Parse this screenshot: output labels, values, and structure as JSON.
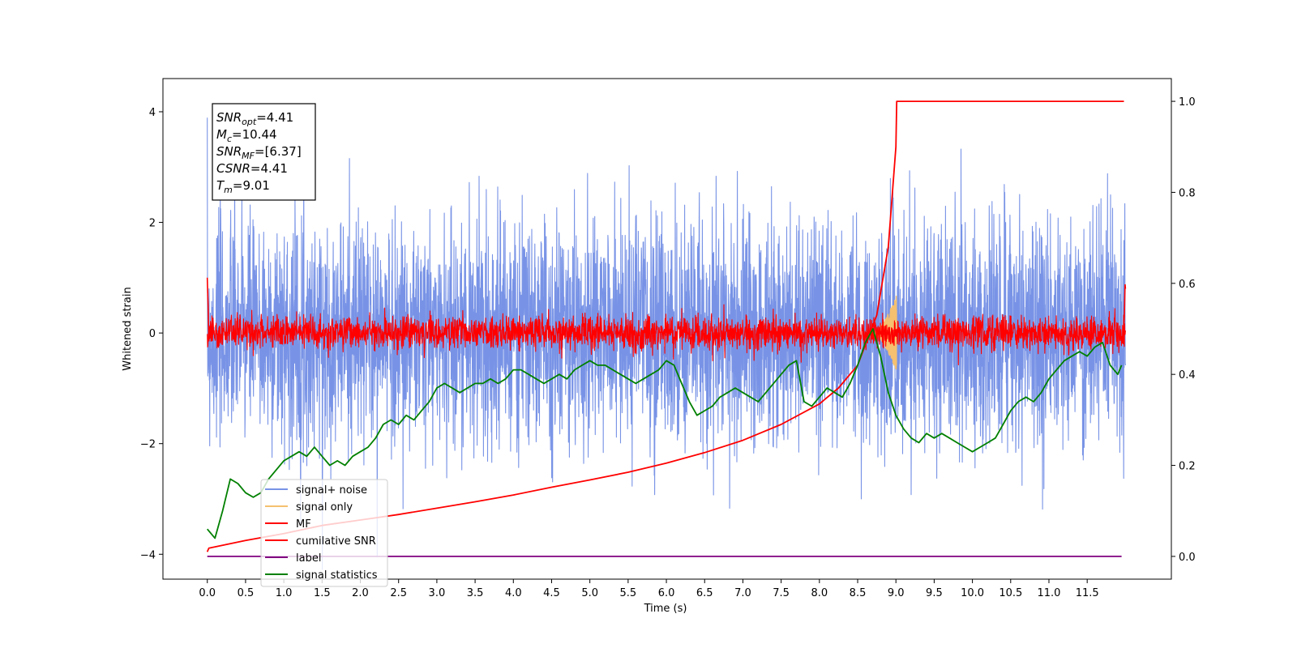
{
  "chart_data": {
    "type": "line",
    "title": "",
    "xlabel": "Time (s)",
    "ylabel": "Whitened strain",
    "ylabel_right": "",
    "xlim": [
      -0.58,
      12.6
    ],
    "ylim": [
      -4.45,
      4.6
    ],
    "ylim_right": [
      -0.05,
      1.05
    ],
    "x_ticks": [
      0.0,
      0.5,
      1.0,
      1.5,
      2.0,
      2.5,
      3.0,
      3.5,
      4.0,
      4.5,
      5.0,
      5.5,
      6.0,
      6.5,
      7.0,
      7.5,
      8.0,
      8.5,
      9.0,
      9.5,
      10.0,
      10.5,
      11.0,
      11.5
    ],
    "x_tick_labels": [
      "0.0",
      "0.5",
      "1.0",
      "1.5",
      "2.0",
      "2.5",
      "3.0",
      "3.5",
      "4.0",
      "4.5",
      "5.0",
      "5.5",
      "6.0",
      "6.5",
      "7.0",
      "7.5",
      "8.0",
      "8.5",
      "9.0",
      "9.5",
      "10.0",
      "10.5",
      "11.0",
      "11.5"
    ],
    "y_ticks": [
      -4,
      -2,
      0,
      2,
      4
    ],
    "y_tick_labels": [
      "−4",
      "−2",
      "0",
      "2",
      "4"
    ],
    "y_right_ticks": [
      0.0,
      0.2,
      0.4,
      0.6,
      0.8,
      1.0
    ],
    "y_right_tick_labels": [
      "0.0",
      "0.2",
      "0.4",
      "0.6",
      "0.8",
      "1.0"
    ],
    "grid": false,
    "legend_position": "lower-left",
    "annotation": [
      {
        "sym": "SNR",
        "sub": "opt",
        "value": "=4.41"
      },
      {
        "sym": "M",
        "sub": "c",
        "value": "=10.44"
      },
      {
        "sym": "SNR",
        "sub": "MF",
        "value": "=[6.37]"
      },
      {
        "sym": "CSNR",
        "sub": "",
        "value": "=4.41"
      },
      {
        "sym": "T",
        "sub": "m",
        "value": "=9.01"
      }
    ],
    "series": [
      {
        "name": "signal+ noise",
        "color": "#7893e6",
        "axis": "left",
        "kind": "noise",
        "amplitude": 1.0,
        "mean": 0.0,
        "x_range": [
          0.0,
          12.0
        ]
      },
      {
        "name": "signal only",
        "color": "#f5c06f",
        "axis": "left",
        "kind": "chirp",
        "x_range": [
          8.7,
          9.01
        ],
        "peak": 0.7
      },
      {
        "name": "MF",
        "color": "#ff0000",
        "axis": "left",
        "kind": "noise",
        "amplitude": 0.15,
        "mean": 0.0,
        "x_range": [
          0.0,
          12.0
        ]
      },
      {
        "name": "cumilative SNR",
        "color": "#ff0000",
        "axis": "right",
        "x": [
          0.0,
          0.02,
          0.5,
          1.0,
          1.5,
          2.0,
          2.5,
          3.0,
          3.5,
          4.0,
          4.5,
          5.0,
          5.5,
          6.0,
          6.5,
          7.0,
          7.5,
          8.0,
          8.25,
          8.5,
          8.75,
          8.9,
          9.0,
          9.01,
          9.5,
          10.0,
          10.5,
          11.0,
          11.5,
          11.98
        ],
        "y": [
          0.01,
          0.018,
          0.035,
          0.05,
          0.068,
          0.08,
          0.092,
          0.106,
          0.12,
          0.135,
          0.152,
          0.168,
          0.185,
          0.205,
          0.228,
          0.255,
          0.29,
          0.335,
          0.37,
          0.42,
          0.53,
          0.68,
          0.9,
          1.0,
          1.0,
          1.0,
          1.0,
          1.0,
          1.0,
          1.0
        ]
      },
      {
        "name": "label",
        "color": "#800080",
        "axis": "right",
        "x": [
          0.0,
          11.95
        ],
        "y": [
          0.0,
          0.0
        ]
      },
      {
        "name": "signal statistics",
        "color": "#008000",
        "axis": "right",
        "x": [
          0.0,
          0.1,
          0.2,
          0.3,
          0.4,
          0.5,
          0.6,
          0.7,
          0.8,
          0.9,
          1.0,
          1.1,
          1.2,
          1.3,
          1.4,
          1.5,
          1.6,
          1.7,
          1.8,
          1.9,
          2.0,
          2.1,
          2.2,
          2.3,
          2.4,
          2.5,
          2.6,
          2.7,
          2.8,
          2.9,
          3.0,
          3.1,
          3.2,
          3.3,
          3.4,
          3.5,
          3.6,
          3.7,
          3.8,
          3.9,
          4.0,
          4.1,
          4.2,
          4.3,
          4.4,
          4.5,
          4.6,
          4.7,
          4.8,
          4.9,
          5.0,
          5.1,
          5.2,
          5.3,
          5.4,
          5.5,
          5.6,
          5.7,
          5.8,
          5.9,
          6.0,
          6.1,
          6.2,
          6.3,
          6.4,
          6.5,
          6.6,
          6.7,
          6.8,
          6.9,
          7.0,
          7.1,
          7.2,
          7.3,
          7.4,
          7.5,
          7.6,
          7.7,
          7.8,
          7.9,
          8.0,
          8.1,
          8.2,
          8.3,
          8.4,
          8.5,
          8.6,
          8.7,
          8.8,
          8.9,
          9.0,
          9.1,
          9.2,
          9.3,
          9.4,
          9.5,
          9.6,
          9.7,
          9.8,
          9.9,
          10.0,
          10.1,
          10.2,
          10.3,
          10.4,
          10.5,
          10.6,
          10.7,
          10.8,
          10.9,
          11.0,
          11.1,
          11.2,
          11.3,
          11.4,
          11.5,
          11.6,
          11.7,
          11.8,
          11.9,
          11.95
        ],
        "y": [
          0.06,
          0.04,
          0.1,
          0.17,
          0.16,
          0.14,
          0.13,
          0.14,
          0.17,
          0.19,
          0.21,
          0.22,
          0.23,
          0.22,
          0.24,
          0.22,
          0.2,
          0.21,
          0.2,
          0.22,
          0.23,
          0.24,
          0.26,
          0.29,
          0.3,
          0.29,
          0.31,
          0.3,
          0.32,
          0.34,
          0.37,
          0.38,
          0.37,
          0.36,
          0.37,
          0.38,
          0.38,
          0.39,
          0.38,
          0.39,
          0.41,
          0.41,
          0.4,
          0.39,
          0.38,
          0.39,
          0.4,
          0.39,
          0.41,
          0.42,
          0.43,
          0.42,
          0.42,
          0.41,
          0.4,
          0.39,
          0.38,
          0.39,
          0.4,
          0.41,
          0.43,
          0.42,
          0.38,
          0.34,
          0.31,
          0.32,
          0.33,
          0.35,
          0.36,
          0.37,
          0.36,
          0.35,
          0.34,
          0.36,
          0.38,
          0.4,
          0.42,
          0.43,
          0.34,
          0.33,
          0.35,
          0.37,
          0.36,
          0.35,
          0.38,
          0.42,
          0.47,
          0.5,
          0.44,
          0.36,
          0.31,
          0.28,
          0.26,
          0.25,
          0.27,
          0.26,
          0.27,
          0.26,
          0.25,
          0.24,
          0.23,
          0.24,
          0.25,
          0.26,
          0.29,
          0.32,
          0.34,
          0.35,
          0.34,
          0.36,
          0.39,
          0.41,
          0.43,
          0.44,
          0.45,
          0.44,
          0.46,
          0.47,
          0.42,
          0.4,
          0.42
        ]
      }
    ]
  }
}
